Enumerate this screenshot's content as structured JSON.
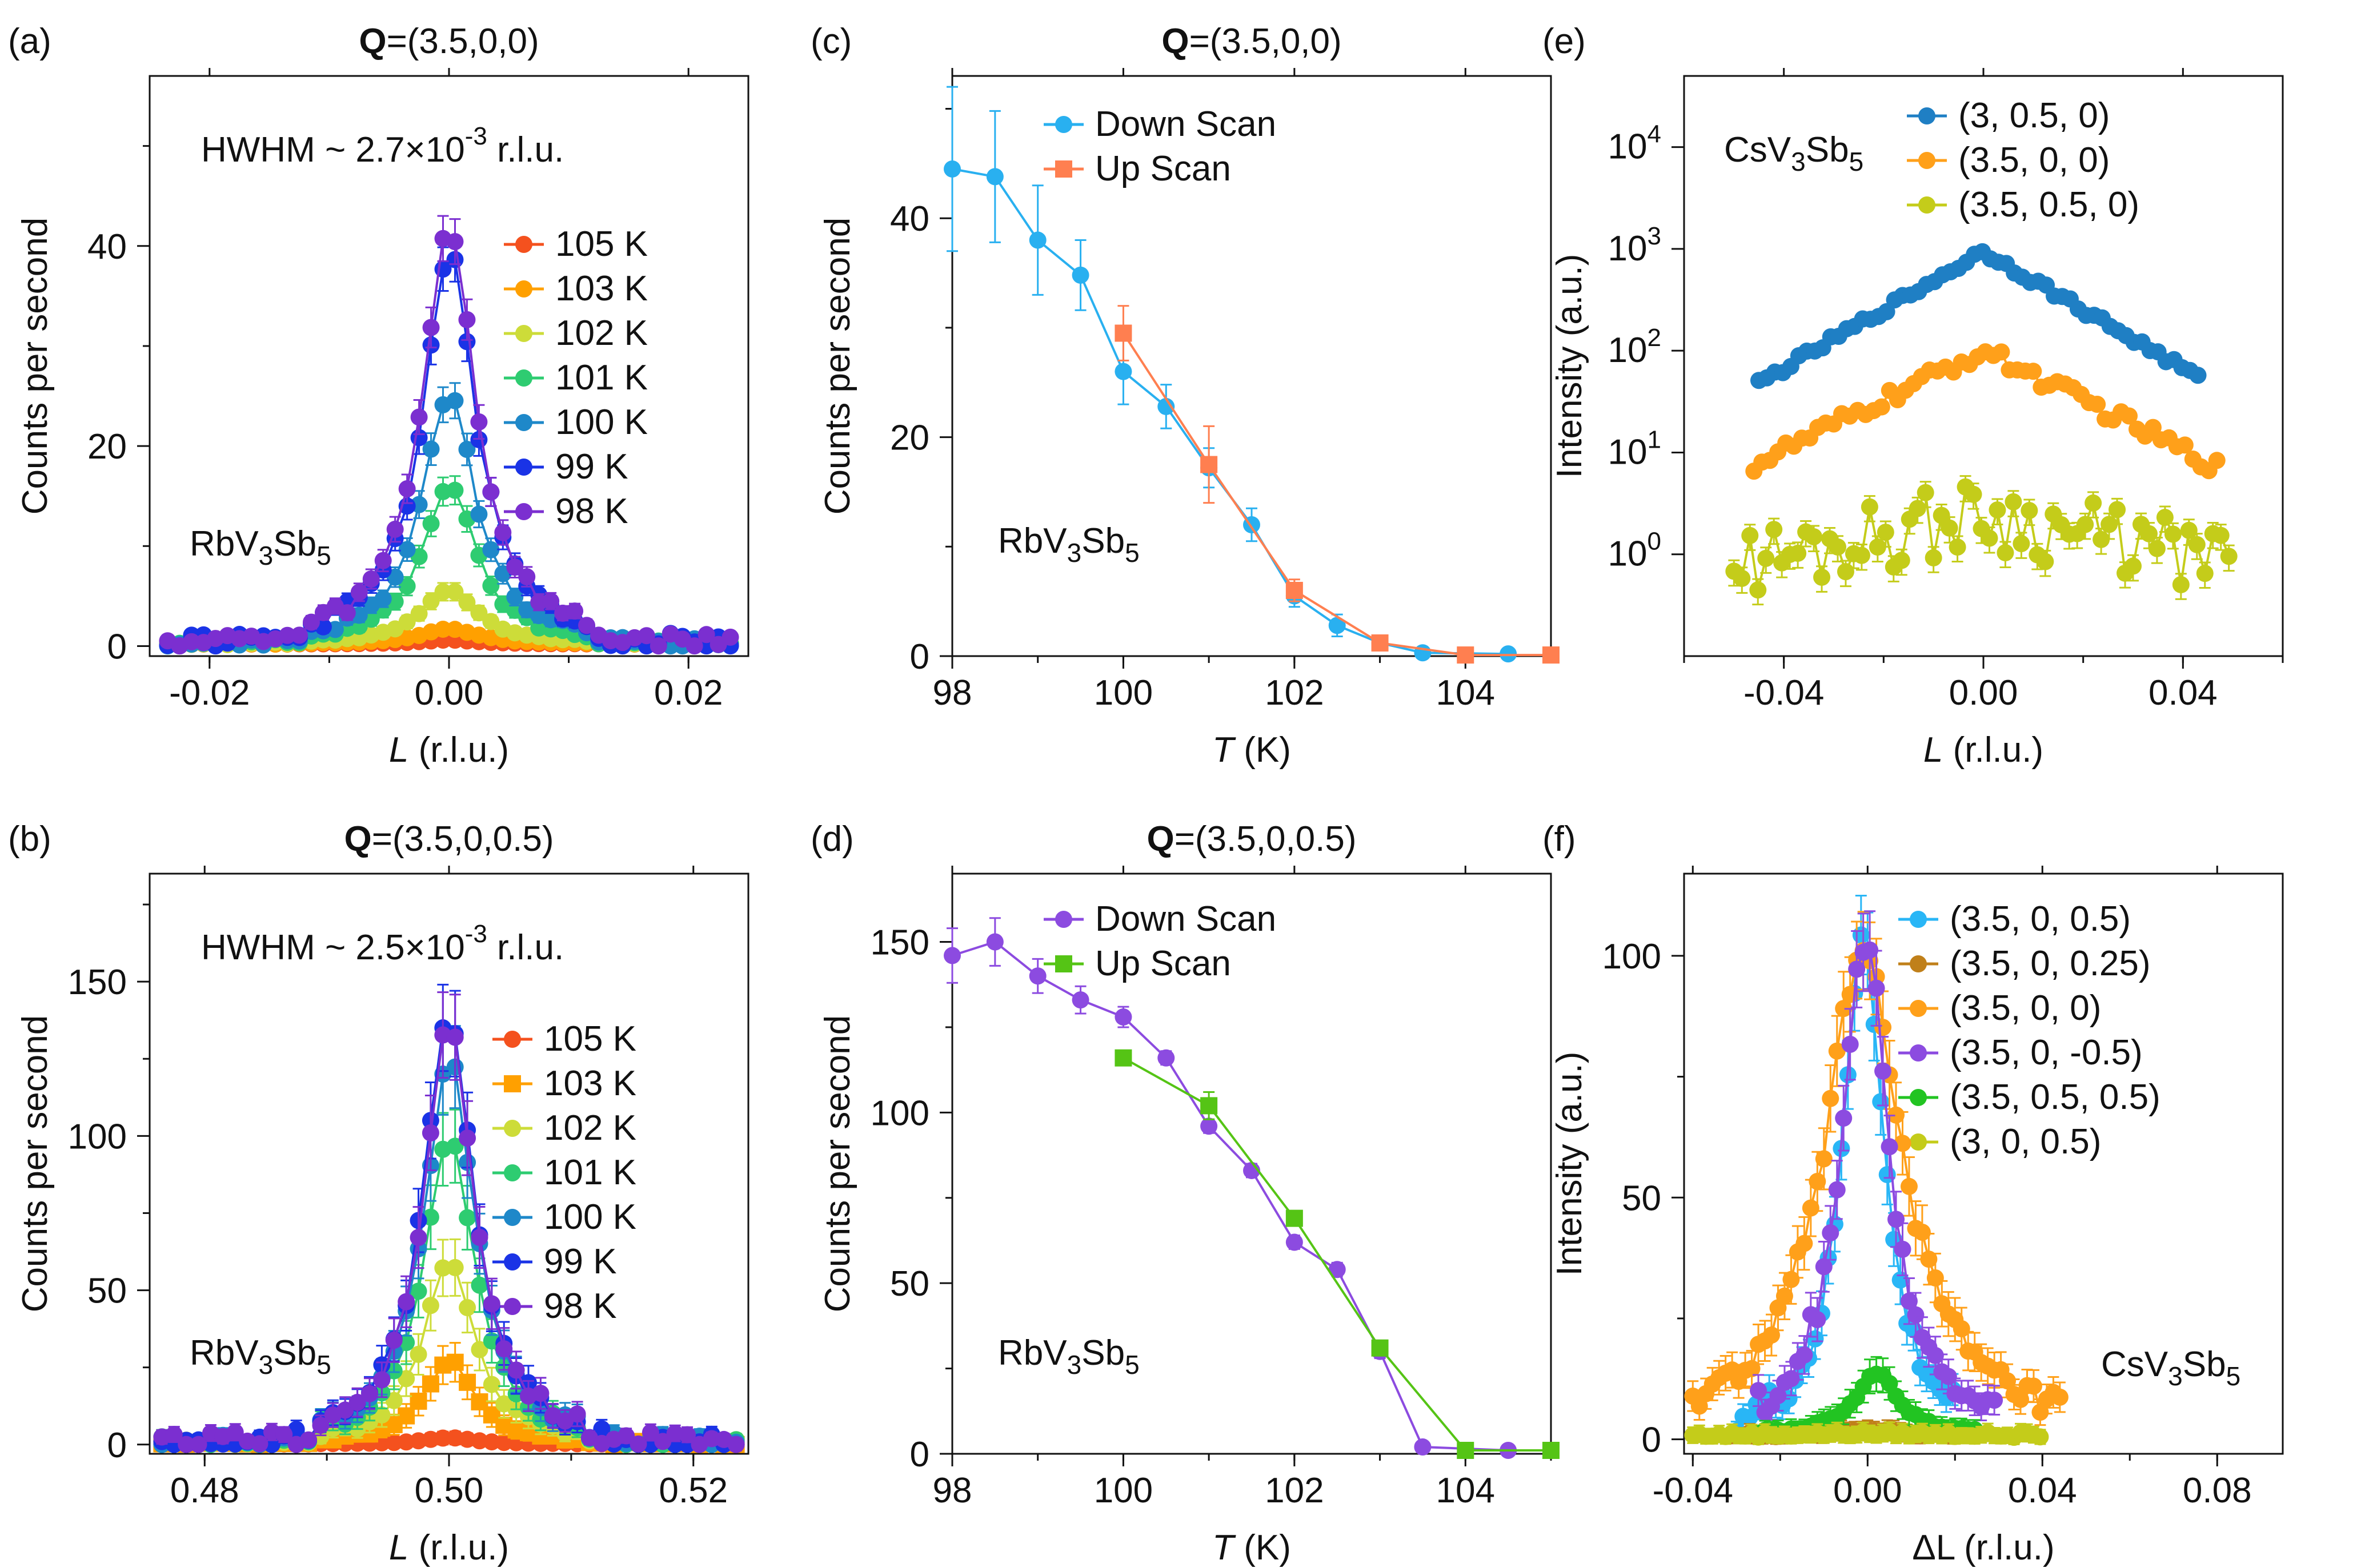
{
  "colors": {
    "t105": "#f4511e",
    "t103": "#ffa000",
    "t102": "#cddc39",
    "t101": "#2ecc71",
    "t100": "#1e88c9",
    "t99": "#1a33e6",
    "t98": "#7b2fd0",
    "c_down": "#29b0f0",
    "c_up": "#ff7f50",
    "d_down": "#8c4be0",
    "d_up": "#55c415",
    "e1": "#1f7fc4",
    "e2": "#ffa01a",
    "e3": "#c4cc1a",
    "f1": "#29b6f6",
    "f2": "#c0801a",
    "f3": "#ffa01a",
    "f4": "#8c4be0",
    "f5": "#22c422",
    "f6": "#c4cc1a"
  },
  "chart_data": [
    {
      "id": "a",
      "type": "line",
      "panel_label": "(a)",
      "title_bold": "Q",
      "title_rest": "=(3.5,0,0)",
      "xlabel_italic": "L",
      "xlabel_rest": " (r.l.u.)",
      "ylabel": "Counts per second",
      "xlim": [
        -0.025,
        0.025
      ],
      "ylim": [
        -1,
        57
      ],
      "yscale": "linear",
      "xticks": [
        -0.02,
        0.0,
        0.02
      ],
      "xtick_labels": [
        "-0.02",
        "0.00",
        "0.02"
      ],
      "yticks": [
        0,
        20,
        40
      ],
      "ytick_labels": [
        "0",
        "20",
        "40"
      ],
      "annotation_main": "HWHM ~ 2.7×10",
      "annotation_sup": "-3",
      "annotation_tail": " r.l.u.",
      "sample_text": "RbV3Sb5",
      "series": [
        {
          "name": "105 K",
          "color_key": "t105",
          "shape": "circle",
          "peak": 0.4,
          "hwhm": 0.003
        },
        {
          "name": "103 K",
          "color_key": "t103",
          "shape": "circle",
          "peak": 1.5,
          "hwhm": 0.003
        },
        {
          "name": "102 K",
          "color_key": "t102",
          "shape": "circle",
          "peak": 5.5,
          "hwhm": 0.0028
        },
        {
          "name": "101 K",
          "color_key": "t101",
          "shape": "circle",
          "peak": 16,
          "hwhm": 0.0027
        },
        {
          "name": "100 K",
          "color_key": "t100",
          "shape": "circle",
          "peak": 25,
          "hwhm": 0.0027
        },
        {
          "name": "99 K",
          "color_key": "t99",
          "shape": "circle",
          "peak": 39,
          "hwhm": 0.0027
        },
        {
          "name": "98 K",
          "color_key": "t98",
          "shape": "circle",
          "peak": 42,
          "hwhm": 0.0027
        }
      ]
    },
    {
      "id": "b",
      "type": "line",
      "panel_label": "(b)",
      "title_bold": "Q",
      "title_rest": "=(3.5,0,0.5)",
      "xlabel_italic": "L",
      "xlabel_rest": " (r.l.u.)",
      "ylabel": "Counts per second",
      "xlim": [
        0.4755,
        0.5245
      ],
      "ylim": [
        -3,
        185
      ],
      "yscale": "linear",
      "xticks": [
        0.48,
        0.5,
        0.52
      ],
      "xtick_labels": [
        "0.48",
        "0.50",
        "0.52"
      ],
      "yticks": [
        0,
        50,
        100,
        150
      ],
      "ytick_labels": [
        "0",
        "50",
        "100",
        "150"
      ],
      "annotation_main": "HWHM ~ 2.5×10",
      "annotation_sup": "-3",
      "annotation_tail": " r.l.u.",
      "sample_text": "RbV3Sb5",
      "series": [
        {
          "name": "105 K",
          "color_key": "t105",
          "shape": "circle",
          "peak": 2,
          "hwhm": 0.0025
        },
        {
          "name": "103 K",
          "color_key": "t103",
          "shape": "square",
          "peak": 27,
          "hwhm": 0.0025
        },
        {
          "name": "102 K",
          "color_key": "t102",
          "shape": "circle",
          "peak": 60,
          "hwhm": 0.0025
        },
        {
          "name": "101 K",
          "color_key": "t101",
          "shape": "circle",
          "peak": 100,
          "hwhm": 0.0025
        },
        {
          "name": "100 K",
          "color_key": "t100",
          "shape": "circle",
          "peak": 125,
          "hwhm": 0.0025
        },
        {
          "name": "99 K",
          "color_key": "t99",
          "shape": "circle",
          "peak": 140,
          "hwhm": 0.0025
        },
        {
          "name": "98 K",
          "color_key": "t98",
          "shape": "circle",
          "peak": 137,
          "hwhm": 0.0025
        }
      ]
    },
    {
      "id": "c",
      "type": "line",
      "panel_label": "(c)",
      "title_bold": "Q",
      "title_rest": "=(3.5,0,0)",
      "xlabel_italic": "T",
      "xlabel_rest": " (K)",
      "ylabel": "Counts per second",
      "xlim": [
        98,
        105
      ],
      "ylim": [
        0,
        53
      ],
      "yscale": "linear",
      "xticks": [
        98,
        100,
        102,
        104
      ],
      "xtick_labels": [
        "98",
        "100",
        "102",
        "104"
      ],
      "yticks": [
        0,
        20,
        40
      ],
      "ytick_labels": [
        "0",
        "20",
        "40"
      ],
      "sample_text": "RbV3Sb5",
      "series": [
        {
          "name": "Down Scan",
          "color_key": "c_down",
          "shape": "circle",
          "x": [
            98,
            98.5,
            99,
            99.5,
            100,
            100.5,
            101,
            101.5,
            102,
            102.5,
            103,
            103.5,
            104.5
          ],
          "y": [
            44.5,
            43.8,
            38,
            34.8,
            26,
            22.8,
            17.2,
            12,
            5.5,
            2.8,
            1.2,
            0.3,
            0.2
          ],
          "err": [
            7.5,
            6,
            5,
            3.2,
            3,
            2,
            1.8,
            1.5,
            1,
            1,
            0.5,
            0.2,
            0.2
          ]
        },
        {
          "name": "Up Scan",
          "color_key": "c_up",
          "shape": "square",
          "x": [
            100,
            101,
            102,
            103,
            104,
            105
          ],
          "y": [
            29.5,
            17.5,
            6,
            1.2,
            0.1,
            0.1
          ],
          "err": [
            2.5,
            3.5,
            1,
            0.5,
            0.2,
            0.2
          ]
        }
      ]
    },
    {
      "id": "d",
      "type": "line",
      "panel_label": "(d)",
      "title_bold": "Q",
      "title_rest": "=(3.5,0,0.5)",
      "xlabel_italic": "T",
      "xlabel_rest": " (K)",
      "ylabel": "Counts per second",
      "xlim": [
        98,
        105
      ],
      "ylim": [
        0,
        170
      ],
      "yscale": "linear",
      "xticks": [
        98,
        100,
        102,
        104
      ],
      "xtick_labels": [
        "98",
        "100",
        "102",
        "104"
      ],
      "yticks": [
        0,
        50,
        100,
        150
      ],
      "ytick_labels": [
        "0",
        "50",
        "100",
        "150"
      ],
      "sample_text": "RbV3Sb5",
      "series": [
        {
          "name": "Down Scan",
          "color_key": "d_down",
          "shape": "circle",
          "x": [
            98,
            98.5,
            99,
            99.5,
            100,
            100.5,
            101,
            101.5,
            102,
            102.5,
            103,
            103.5,
            104.5
          ],
          "y": [
            146,
            150,
            140,
            133,
            128,
            116,
            96,
            83,
            62,
            54,
            30,
            2,
            1
          ],
          "err": [
            8,
            7,
            5,
            4,
            3,
            2,
            2,
            2,
            2,
            2,
            2,
            1,
            1
          ]
        },
        {
          "name": "Up Scan",
          "color_key": "d_up",
          "shape": "square",
          "x": [
            100,
            101,
            102,
            103,
            104,
            105
          ],
          "y": [
            116,
            102,
            69,
            31,
            1,
            1
          ],
          "err": [
            2,
            4,
            2,
            2,
            1,
            1
          ]
        }
      ]
    },
    {
      "id": "e",
      "type": "line",
      "panel_label": "(e)",
      "title_bold": "",
      "title_rest": "",
      "xlabel_italic": "L",
      "xlabel_rest": " (r.l.u.)",
      "ylabel": "Intensity (a.u.)",
      "xlim": [
        -0.06,
        0.06
      ],
      "ylim": [
        0.1,
        50000
      ],
      "yscale": "log",
      "xticks": [
        -0.04,
        0.0,
        0.04
      ],
      "xtick_labels": [
        "-0.04",
        "0.00",
        "0.04"
      ],
      "yticks": [
        1,
        10,
        100,
        1000,
        10000
      ],
      "ytick_base": "10",
      "ytick_exps": [
        "0",
        "1",
        "2",
        "3",
        "4"
      ],
      "sample_text": "CsV3Sb5",
      "series": [
        {
          "name": "(3, 0.5, 0)",
          "color_key": "e1",
          "shape": "circle",
          "peak": 950,
          "base": 48,
          "xrange": [
            -0.045,
            0.043
          ],
          "noise": 0.04
        },
        {
          "name": "(3.5, 0, 0)",
          "color_key": "e2",
          "shape": "circle",
          "peak": 100,
          "base": 8,
          "xrange": [
            -0.046,
            0.047
          ],
          "noise": 0.08
        },
        {
          "name": "(3.5, 0.5, 0)",
          "color_key": "e3",
          "shape": "circle",
          "peak": 2.5,
          "base": 0.9,
          "xrange": [
            -0.05,
            0.05
          ],
          "noise": 0.35
        }
      ]
    },
    {
      "id": "f",
      "type": "line",
      "panel_label": "(f)",
      "title_bold": "",
      "title_rest": "",
      "xlabel_italic": "",
      "xlabel_rest": "ΔL (r.l.u.)",
      "ylabel": "Intensity (a.u.)",
      "xlim": [
        -0.042,
        0.095
      ],
      "ylim": [
        -3,
        117
      ],
      "yscale": "linear",
      "xticks": [
        -0.04,
        0.0,
        0.04,
        0.08
      ],
      "xtick_labels": [
        "-0.04",
        "0.00",
        "0.04",
        "0.08"
      ],
      "yticks": [
        0,
        50,
        100
      ],
      "ytick_labels": [
        "0",
        "50",
        "100"
      ],
      "sample_text": "CsV3Sb5",
      "series": [
        {
          "name": "(3.5, 0, 0.5)",
          "color_key": "f1",
          "shape": "circle",
          "peak": 105,
          "hwhm": 0.0055,
          "xrange": [
            -0.03,
            0.02
          ],
          "center": -0.001
        },
        {
          "name": "(3.5, 0, 0.25)",
          "color_key": "f2",
          "shape": "circle",
          "peak": 1,
          "hwhm": 0.01,
          "xrange": [
            -0.03,
            0.025
          ],
          "center": 0
        },
        {
          "name": "(3.5, 0, 0)",
          "color_key": "f3",
          "shape": "circle",
          "peak": 100,
          "hwhm": 0.011,
          "xrange": [
            -0.04,
            0.045
          ],
          "center": -0.001
        },
        {
          "name": "(3.5, 0, -0.5)",
          "color_key": "f4",
          "shape": "circle",
          "peak": 103,
          "hwhm": 0.0065,
          "xrange": [
            -0.025,
            0.03
          ],
          "center": -0.0005
        },
        {
          "name": "(3.5, 0.5, 0.5)",
          "color_key": "f5",
          "shape": "circle",
          "peak": 13,
          "hwhm": 0.006,
          "xrange": [
            -0.025,
            0.025
          ],
          "center": 0.002
        },
        {
          "name": "(3, 0, 0.5)",
          "color_key": "f6",
          "shape": "circle",
          "peak": 0.4,
          "hwhm": 0.02,
          "xrange": [
            -0.04,
            0.04
          ],
          "center": 0
        }
      ]
    }
  ]
}
